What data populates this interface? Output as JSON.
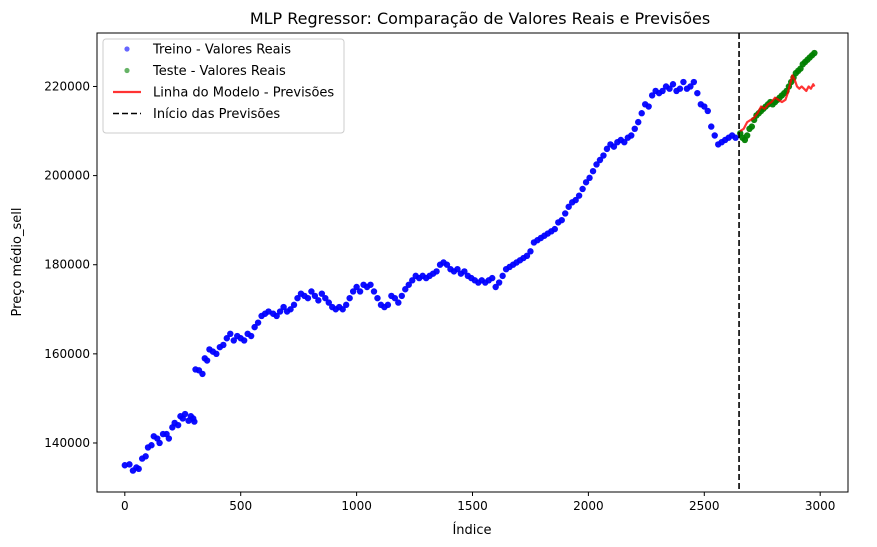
{
  "chart_data": {
    "type": "scatter",
    "title": "MLP Regressor: Comparação de Valores Reais e Previsões",
    "xlabel": "Índice",
    "ylabel": "Preço médio_sell",
    "xlim": [
      -120,
      3120
    ],
    "ylim": [
      129000,
      232000
    ],
    "xticks": [
      0,
      500,
      1000,
      1500,
      2000,
      2500,
      3000
    ],
    "yticks": [
      140000,
      160000,
      180000,
      200000,
      220000
    ],
    "grid": false,
    "legend_position": "top-left",
    "vline": {
      "x": 2650,
      "label": "Início das Previsões",
      "color": "#000000"
    },
    "series": [
      {
        "name": "Treino - Valores Reais",
        "kind": "scatter",
        "color": "#0000ff",
        "points": [
          [
            0,
            135000
          ],
          [
            20,
            135200
          ],
          [
            35,
            133800
          ],
          [
            50,
            134500
          ],
          [
            60,
            134200
          ],
          [
            75,
            136500
          ],
          [
            90,
            137000
          ],
          [
            100,
            139000
          ],
          [
            115,
            139500
          ],
          [
            125,
            141500
          ],
          [
            140,
            141000
          ],
          [
            150,
            140000
          ],
          [
            165,
            142000
          ],
          [
            180,
            142000
          ],
          [
            190,
            141000
          ],
          [
            205,
            143500
          ],
          [
            215,
            144500
          ],
          [
            230,
            144000
          ],
          [
            240,
            146000
          ],
          [
            250,
            145500
          ],
          [
            260,
            146500
          ],
          [
            275,
            145000
          ],
          [
            285,
            146000
          ],
          [
            295,
            145500
          ],
          [
            300,
            144800
          ],
          [
            305,
            156500
          ],
          [
            320,
            156300
          ],
          [
            335,
            155500
          ],
          [
            345,
            159000
          ],
          [
            355,
            158500
          ],
          [
            365,
            161000
          ],
          [
            380,
            160500
          ],
          [
            395,
            160000
          ],
          [
            410,
            161500
          ],
          [
            425,
            162000
          ],
          [
            440,
            163500
          ],
          [
            455,
            164500
          ],
          [
            470,
            163000
          ],
          [
            485,
            164000
          ],
          [
            500,
            163500
          ],
          [
            515,
            163000
          ],
          [
            530,
            164500
          ],
          [
            545,
            164000
          ],
          [
            560,
            166000
          ],
          [
            575,
            167000
          ],
          [
            590,
            168500
          ],
          [
            605,
            169000
          ],
          [
            620,
            169500
          ],
          [
            640,
            169000
          ],
          [
            655,
            168500
          ],
          [
            670,
            169500
          ],
          [
            685,
            170500
          ],
          [
            700,
            169500
          ],
          [
            715,
            170000
          ],
          [
            730,
            171000
          ],
          [
            745,
            172500
          ],
          [
            760,
            173500
          ],
          [
            775,
            173000
          ],
          [
            790,
            172500
          ],
          [
            805,
            174000
          ],
          [
            820,
            173000
          ],
          [
            835,
            172000
          ],
          [
            850,
            173500
          ],
          [
            865,
            172500
          ],
          [
            880,
            171500
          ],
          [
            895,
            170500
          ],
          [
            910,
            170000
          ],
          [
            925,
            170500
          ],
          [
            940,
            170000
          ],
          [
            955,
            171000
          ],
          [
            970,
            172500
          ],
          [
            985,
            174000
          ],
          [
            1000,
            175000
          ],
          [
            1015,
            174000
          ],
          [
            1030,
            175500
          ],
          [
            1045,
            175000
          ],
          [
            1060,
            175500
          ],
          [
            1075,
            174000
          ],
          [
            1090,
            172500
          ],
          [
            1105,
            171000
          ],
          [
            1120,
            170500
          ],
          [
            1135,
            171000
          ],
          [
            1150,
            173000
          ],
          [
            1165,
            172500
          ],
          [
            1180,
            171500
          ],
          [
            1195,
            173000
          ],
          [
            1210,
            174500
          ],
          [
            1225,
            175500
          ],
          [
            1240,
            176500
          ],
          [
            1255,
            177500
          ],
          [
            1270,
            177000
          ],
          [
            1285,
            177500
          ],
          [
            1300,
            177000
          ],
          [
            1315,
            177500
          ],
          [
            1330,
            178000
          ],
          [
            1345,
            178500
          ],
          [
            1360,
            180000
          ],
          [
            1375,
            180500
          ],
          [
            1390,
            180000
          ],
          [
            1405,
            179000
          ],
          [
            1420,
            178500
          ],
          [
            1435,
            179000
          ],
          [
            1450,
            178000
          ],
          [
            1465,
            178500
          ],
          [
            1480,
            177500
          ],
          [
            1495,
            177000
          ],
          [
            1510,
            176500
          ],
          [
            1525,
            176000
          ],
          [
            1540,
            176500
          ],
          [
            1555,
            176000
          ],
          [
            1570,
            176500
          ],
          [
            1585,
            177000
          ],
          [
            1600,
            175000
          ],
          [
            1615,
            176000
          ],
          [
            1630,
            177500
          ],
          [
            1645,
            179000
          ],
          [
            1660,
            179500
          ],
          [
            1675,
            180000
          ],
          [
            1690,
            180500
          ],
          [
            1705,
            181000
          ],
          [
            1720,
            181500
          ],
          [
            1735,
            182000
          ],
          [
            1750,
            183000
          ],
          [
            1765,
            185000
          ],
          [
            1780,
            185500
          ],
          [
            1795,
            186000
          ],
          [
            1810,
            186500
          ],
          [
            1825,
            187000
          ],
          [
            1840,
            187500
          ],
          [
            1855,
            188000
          ],
          [
            1870,
            189500
          ],
          [
            1885,
            190000
          ],
          [
            1900,
            191500
          ],
          [
            1915,
            193000
          ],
          [
            1930,
            194000
          ],
          [
            1945,
            194500
          ],
          [
            1960,
            195500
          ],
          [
            1975,
            197000
          ],
          [
            1990,
            198500
          ],
          [
            2005,
            199500
          ],
          [
            2020,
            201000
          ],
          [
            2035,
            202500
          ],
          [
            2050,
            203500
          ],
          [
            2065,
            204500
          ],
          [
            2080,
            206000
          ],
          [
            2095,
            207000
          ],
          [
            2110,
            206500
          ],
          [
            2125,
            207500
          ],
          [
            2140,
            208000
          ],
          [
            2155,
            207500
          ],
          [
            2170,
            208500
          ],
          [
            2185,
            209000
          ],
          [
            2200,
            210500
          ],
          [
            2215,
            212000
          ],
          [
            2230,
            214000
          ],
          [
            2245,
            216000
          ],
          [
            2260,
            215500
          ],
          [
            2275,
            218000
          ],
          [
            2290,
            219000
          ],
          [
            2305,
            218500
          ],
          [
            2320,
            219000
          ],
          [
            2335,
            220000
          ],
          [
            2350,
            219500
          ],
          [
            2365,
            220500
          ],
          [
            2380,
            219000
          ],
          [
            2395,
            219500
          ],
          [
            2410,
            221000
          ],
          [
            2425,
            219500
          ],
          [
            2440,
            220000
          ],
          [
            2455,
            221000
          ],
          [
            2470,
            218500
          ],
          [
            2485,
            216000
          ],
          [
            2500,
            215500
          ],
          [
            2515,
            214500
          ],
          [
            2530,
            211000
          ],
          [
            2545,
            209000
          ],
          [
            2560,
            207000
          ],
          [
            2575,
            207500
          ],
          [
            2590,
            208000
          ],
          [
            2605,
            208500
          ],
          [
            2620,
            209000
          ],
          [
            2635,
            208500
          ]
        ]
      },
      {
        "name": "Teste - Valores Reais",
        "kind": "scatter",
        "color": "#008000",
        "points": [
          [
            2655,
            209500
          ],
          [
            2665,
            208500
          ],
          [
            2675,
            208000
          ],
          [
            2685,
            209000
          ],
          [
            2695,
            210500
          ],
          [
            2705,
            211000
          ],
          [
            2715,
            212500
          ],
          [
            2725,
            213500
          ],
          [
            2735,
            214000
          ],
          [
            2745,
            214500
          ],
          [
            2755,
            215000
          ],
          [
            2765,
            215500
          ],
          [
            2775,
            216000
          ],
          [
            2785,
            216500
          ],
          [
            2795,
            216000
          ],
          [
            2805,
            216500
          ],
          [
            2815,
            217000
          ],
          [
            2825,
            217500
          ],
          [
            2835,
            218000
          ],
          [
            2845,
            218500
          ],
          [
            2855,
            219000
          ],
          [
            2865,
            220000
          ],
          [
            2875,
            221000
          ],
          [
            2885,
            222000
          ],
          [
            2895,
            223000
          ],
          [
            2905,
            223500
          ],
          [
            2915,
            224000
          ],
          [
            2925,
            225000
          ],
          [
            2935,
            225500
          ],
          [
            2945,
            226000
          ],
          [
            2955,
            226500
          ],
          [
            2965,
            227000
          ],
          [
            2975,
            227500
          ]
        ]
      },
      {
        "name": "Linha do Modelo - Previsões",
        "kind": "line",
        "color": "#ff0000",
        "points": [
          [
            2655,
            210000
          ],
          [
            2670,
            210500
          ],
          [
            2685,
            212000
          ],
          [
            2700,
            212500
          ],
          [
            2715,
            213000
          ],
          [
            2730,
            214000
          ],
          [
            2745,
            215500
          ],
          [
            2760,
            215000
          ],
          [
            2775,
            216000
          ],
          [
            2790,
            216500
          ],
          [
            2805,
            217500
          ],
          [
            2820,
            217000
          ],
          [
            2835,
            216500
          ],
          [
            2850,
            217000
          ],
          [
            2860,
            218500
          ],
          [
            2870,
            220500
          ],
          [
            2880,
            222500
          ],
          [
            2890,
            221500
          ],
          [
            2900,
            220000
          ],
          [
            2910,
            219500
          ],
          [
            2920,
            220000
          ],
          [
            2930,
            219500
          ],
          [
            2940,
            219000
          ],
          [
            2950,
            220000
          ],
          [
            2960,
            219500
          ],
          [
            2970,
            220500
          ],
          [
            2975,
            220000
          ]
        ]
      }
    ]
  }
}
